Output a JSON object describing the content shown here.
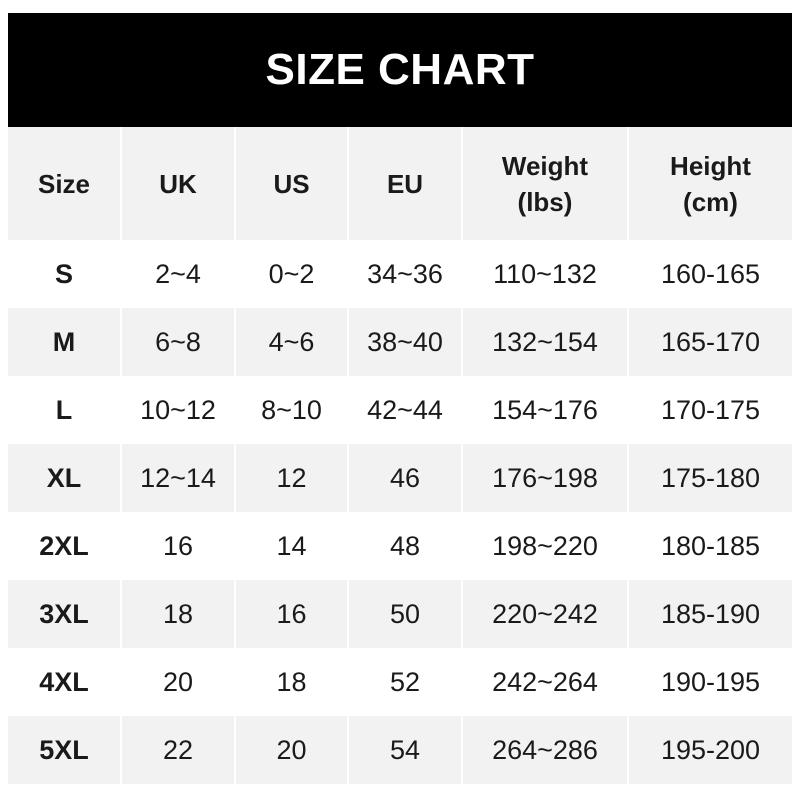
{
  "title": "SIZE CHART",
  "columns": [
    "Size",
    "UK",
    "US",
    "EU",
    "Weight\n(lbs)",
    "Height\n(cm)"
  ],
  "rows": [
    [
      "S",
      "2~4",
      "0~2",
      "34~36",
      "110~132",
      "160-165"
    ],
    [
      "M",
      "6~8",
      "4~6",
      "38~40",
      "132~154",
      "165-170"
    ],
    [
      "L",
      "10~12",
      "8~10",
      "42~44",
      "154~176",
      "170-175"
    ],
    [
      "XL",
      "12~14",
      "12",
      "46",
      "176~198",
      "175-180"
    ],
    [
      "2XL",
      "16",
      "14",
      "48",
      "198~220",
      "180-185"
    ],
    [
      "3XL",
      "18",
      "16",
      "50",
      "220~242",
      "185-190"
    ],
    [
      "4XL",
      "20",
      "18",
      "52",
      "242~264",
      "190-195"
    ],
    [
      "5XL",
      "22",
      "20",
      "54",
      "264~286",
      "195-200"
    ]
  ],
  "colors": {
    "title_bg": "#000000",
    "header_bg": "#f2f2f2",
    "alt_row_bg": "#f2f2f2"
  }
}
